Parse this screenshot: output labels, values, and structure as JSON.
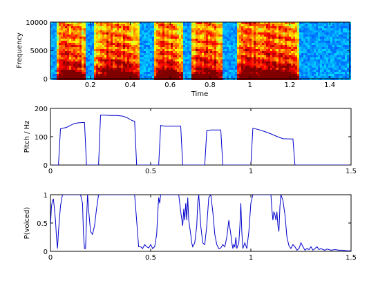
{
  "colors": {
    "trace": "#0000cc",
    "axes": "#000000",
    "background": "#ffffff"
  },
  "chart_data": [
    {
      "type": "heatmap",
      "title": "",
      "xlabel": "Time",
      "ylabel": "Frequency",
      "xlim": [
        0.0,
        1.5
      ],
      "ylim": [
        0,
        10000
      ],
      "xticks": [
        0.2,
        0.4,
        0.6,
        0.8,
        1.0,
        1.2,
        1.4
      ],
      "xtick_labels": [
        "0.2",
        "0.4",
        "0.6",
        "0.8",
        "1",
        "1.2",
        "1.4"
      ],
      "yticks": [
        0,
        5000,
        10000
      ],
      "ytick_labels": [
        "0",
        "5000",
        "10000"
      ],
      "colormap": "jet",
      "content": "spectrogram of a speech signal",
      "energy_segments": [
        [
          0.03,
          0.18
        ],
        [
          0.22,
          0.44
        ],
        [
          0.52,
          0.66
        ],
        [
          0.7,
          0.86
        ],
        [
          0.93,
          1.24
        ]
      ],
      "grid": false
    },
    {
      "type": "line",
      "title": "",
      "xlabel": "",
      "ylabel": "Pitch / Hz",
      "xlim": [
        0,
        1.5
      ],
      "ylim": [
        0,
        200
      ],
      "xticks": [
        0,
        0.5,
        1,
        1.5
      ],
      "xtick_labels": [
        "0",
        "0.5",
        "1",
        "1.5"
      ],
      "yticks": [
        0,
        100,
        200
      ],
      "ytick_labels": [
        "0",
        "100",
        "200"
      ],
      "grid": false,
      "series": [
        {
          "x": [
            0.0,
            0.04,
            0.05,
            0.08,
            0.1,
            0.12,
            0.14,
            0.16,
            0.17,
            0.18,
            0.24,
            0.25,
            0.27,
            0.3,
            0.33,
            0.36,
            0.38,
            0.41,
            0.42,
            0.43,
            0.54,
            0.55,
            0.57,
            0.6,
            0.63,
            0.65,
            0.66,
            0.77,
            0.78,
            0.8,
            0.83,
            0.85,
            0.86,
            1.0,
            1.01,
            1.04,
            1.07,
            1.1,
            1.13,
            1.16,
            1.2,
            1.21,
            1.22,
            1.5
          ],
          "y": [
            0,
            0,
            128,
            133,
            140,
            147,
            149,
            150,
            150,
            0,
            0,
            176,
            176,
            175,
            175,
            173,
            168,
            156,
            155,
            0,
            0,
            140,
            137,
            137,
            137,
            137,
            0,
            0,
            122,
            124,
            124,
            124,
            0,
            0,
            130,
            125,
            118,
            110,
            101,
            93,
            92,
            92,
            0,
            0
          ]
        }
      ]
    },
    {
      "type": "line",
      "title": "",
      "xlabel": "",
      "ylabel": "P(voiced)",
      "xlim": [
        0,
        1.5
      ],
      "ylim": [
        0,
        1
      ],
      "xticks": [
        0,
        0.5,
        1,
        1.5
      ],
      "xtick_labels": [
        "0",
        "0.5",
        "1",
        "1.5"
      ],
      "yticks": [
        0,
        0.5,
        1
      ],
      "ytick_labels": [
        "0",
        "0.5",
        "1"
      ],
      "grid": false,
      "series": [
        {
          "x": [
            0.0,
            0.005,
            0.01,
            0.015,
            0.02,
            0.025,
            0.03,
            0.035,
            0.04,
            0.05,
            0.06,
            0.07,
            0.08,
            0.1,
            0.12,
            0.14,
            0.15,
            0.16,
            0.165,
            0.17,
            0.175,
            0.18,
            0.185,
            0.19,
            0.2,
            0.21,
            0.22,
            0.23,
            0.24,
            0.25,
            0.3,
            0.35,
            0.4,
            0.42,
            0.43,
            0.44,
            0.45,
            0.46,
            0.47,
            0.48,
            0.49,
            0.5,
            0.51,
            0.52,
            0.53,
            0.535,
            0.54,
            0.545,
            0.55,
            0.6,
            0.64,
            0.65,
            0.66,
            0.665,
            0.67,
            0.675,
            0.68,
            0.685,
            0.69,
            0.7,
            0.705,
            0.71,
            0.72,
            0.73,
            0.735,
            0.74,
            0.75,
            0.76,
            0.77,
            0.78,
            0.79,
            0.8,
            0.81,
            0.82,
            0.83,
            0.84,
            0.85,
            0.86,
            0.87,
            0.88,
            0.89,
            0.9,
            0.905,
            0.91,
            0.915,
            0.92,
            0.925,
            0.93,
            0.94,
            0.945,
            0.95,
            0.955,
            0.96,
            0.97,
            0.98,
            0.99,
            1.0,
            1.01,
            1.05,
            1.1,
            1.105,
            1.11,
            1.115,
            1.12,
            1.125,
            1.13,
            1.135,
            1.14,
            1.145,
            1.15,
            1.16,
            1.17,
            1.18,
            1.19,
            1.2,
            1.21,
            1.22,
            1.23,
            1.24,
            1.25,
            1.26,
            1.27,
            1.28,
            1.29,
            1.3,
            1.31,
            1.32,
            1.33,
            1.34,
            1.35,
            1.36,
            1.37,
            1.38,
            1.39,
            1.4,
            1.42,
            1.44,
            1.46,
            1.48,
            1.5
          ],
          "y": [
            0.45,
            0.8,
            0.9,
            0.92,
            0.75,
            0.55,
            0.25,
            0.05,
            0.35,
            0.8,
            1.0,
            1.0,
            1.0,
            1.0,
            1.0,
            1.0,
            1.0,
            0.85,
            0.3,
            0.05,
            0.05,
            0.55,
            1.0,
            0.75,
            0.35,
            0.3,
            0.45,
            0.75,
            1.0,
            1.0,
            1.0,
            1.0,
            1.0,
            1.0,
            0.55,
            0.08,
            0.08,
            0.05,
            0.12,
            0.08,
            0.06,
            0.12,
            0.05,
            0.08,
            0.3,
            0.65,
            0.95,
            0.85,
            1.0,
            1.0,
            1.0,
            0.7,
            0.45,
            0.75,
            0.55,
            0.85,
            0.55,
            0.95,
            0.55,
            0.3,
            0.15,
            0.08,
            0.15,
            0.45,
            0.85,
            1.0,
            0.45,
            0.15,
            0.12,
            0.45,
            0.95,
            1.0,
            0.7,
            0.3,
            0.12,
            0.05,
            0.06,
            0.12,
            0.08,
            0.25,
            0.55,
            0.3,
            0.15,
            0.05,
            0.12,
            0.08,
            0.25,
            0.05,
            0.15,
            0.45,
            0.85,
            0.35,
            0.05,
            0.15,
            0.05,
            0.35,
            0.85,
            1.0,
            1.0,
            1.0,
            0.75,
            0.55,
            0.7,
            0.65,
            0.55,
            0.7,
            0.45,
            0.35,
            0.8,
            1.0,
            0.9,
            0.65,
            0.25,
            0.1,
            0.05,
            0.12,
            0.08,
            0.02,
            0.05,
            0.15,
            0.08,
            0.02,
            0.05,
            0.03,
            0.08,
            0.02,
            0.05,
            0.08,
            0.03,
            0.05,
            0.03,
            0.02,
            0.04,
            0.03,
            0.02,
            0.03,
            0.02,
            0.02,
            0.01,
            0.01
          ]
        }
      ]
    }
  ]
}
